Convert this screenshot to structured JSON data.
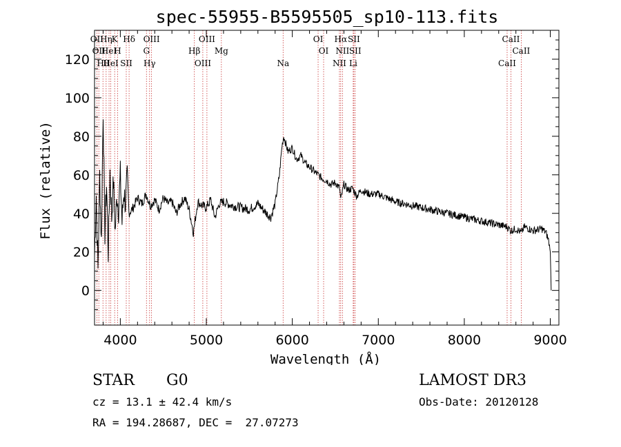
{
  "chart_data": {
    "type": "line",
    "title": "spec-55955-B5595505_sp10-113.fits",
    "xlabel": "Wavelength (Å)",
    "ylabel": "Flux (relative)",
    "xlim": [
      3700,
      9100
    ],
    "ylim": [
      -18,
      135
    ],
    "x_ticks": [
      4000,
      5000,
      6000,
      7000,
      8000,
      9000
    ],
    "y_ticks": [
      0,
      20,
      40,
      60,
      80,
      100,
      120
    ],
    "grid": false,
    "legend": "none",
    "series": [
      {
        "x": [
          3700,
          3720,
          3740,
          3760,
          3780,
          3800,
          3820,
          3840,
          3860,
          3880,
          3900,
          3920,
          3940,
          3960,
          3980,
          4000,
          4020,
          4040,
          4060,
          4080,
          4100,
          4150,
          4200,
          4250,
          4300,
          4350,
          4400,
          4450,
          4500,
          4550,
          4600,
          4650,
          4700,
          4750,
          4800,
          4850,
          4900,
          4950,
          5000,
          5050,
          5100,
          5150,
          5200,
          5300,
          5400,
          5500,
          5600,
          5700,
          5750,
          5800,
          5850,
          5880,
          5900,
          5950,
          6000,
          6050,
          6100,
          6150,
          6200,
          6250,
          6300,
          6350,
          6400,
          6450,
          6500,
          6550,
          6563,
          6600,
          6650,
          6700,
          6750,
          6800,
          6900,
          7000,
          7100,
          7200,
          7300,
          7400,
          7500,
          7600,
          7700,
          7800,
          7900,
          8000,
          8100,
          8200,
          8300,
          8400,
          8500,
          8542,
          8600,
          8662,
          8700,
          8800,
          8900,
          8950,
          8980,
          9000,
          9010
        ],
        "values": [
          18,
          50,
          10,
          60,
          25,
          94,
          30,
          55,
          20,
          62,
          38,
          57,
          30,
          50,
          42,
          60,
          35,
          52,
          45,
          58,
          40,
          43,
          48,
          45,
          50,
          44,
          47,
          42,
          48,
          45,
          46,
          40,
          45,
          48,
          42,
          30,
          46,
          44,
          43,
          47,
          38,
          45,
          46,
          44,
          43,
          42,
          45,
          40,
          38,
          45,
          60,
          75,
          80,
          72,
          74,
          68,
          70,
          66,
          64,
          62,
          60,
          58,
          57,
          55,
          56,
          53,
          47,
          55,
          52,
          53,
          49,
          52,
          50,
          50,
          48,
          46,
          45,
          44,
          43,
          42,
          41,
          40,
          39,
          38,
          37,
          36,
          35,
          34,
          33,
          31,
          32,
          30,
          33,
          31,
          32,
          30,
          26,
          20,
          0
        ]
      }
    ],
    "spectral_lines": [
      {
        "x": 3727,
        "label": "OII"
      },
      {
        "x": 3750,
        "label": "OII"
      },
      {
        "x": 3798,
        "label": "Hθ"
      },
      {
        "x": 3835,
        "label": "Hη"
      },
      {
        "x": 3869,
        "label": "HeI"
      },
      {
        "x": 3889,
        "label": "HeI"
      },
      {
        "x": 3934,
        "label": "K"
      },
      {
        "x": 3969,
        "label": "H"
      },
      {
        "x": 4069,
        "label": "SII"
      },
      {
        "x": 4102,
        "label": "Hδ"
      },
      {
        "x": 4304,
        "label": "G"
      },
      {
        "x": 4340,
        "label": "Hγ"
      },
      {
        "x": 4363,
        "label": "OIII"
      },
      {
        "x": 4861,
        "label": "Hβ"
      },
      {
        "x": 4959,
        "label": "OIII"
      },
      {
        "x": 5007,
        "label": "OIII"
      },
      {
        "x": 5175,
        "label": "Mg"
      },
      {
        "x": 5893,
        "label": "Na"
      },
      {
        "x": 6300,
        "label": "OI"
      },
      {
        "x": 6364,
        "label": "OI"
      },
      {
        "x": 6548,
        "label": "NII"
      },
      {
        "x": 6563,
        "label": "Hα"
      },
      {
        "x": 6583,
        "label": "NII"
      },
      {
        "x": 6708,
        "label": "Li"
      },
      {
        "x": 6716,
        "label": "SII"
      },
      {
        "x": 6731,
        "label": "SII"
      },
      {
        "x": 8498,
        "label": "CaII"
      },
      {
        "x": 8542,
        "label": "CaII"
      },
      {
        "x": 8662,
        "label": "CaII"
      }
    ]
  },
  "info": {
    "object_class": "STAR",
    "subclass": "G0",
    "survey": "LAMOST DR3",
    "redshift": "cz = 13.1 ± 42.4 km/s",
    "obs_date": "Obs-Date: 20120128",
    "coords": "RA = 194.28687, DEC =  27.07273"
  }
}
